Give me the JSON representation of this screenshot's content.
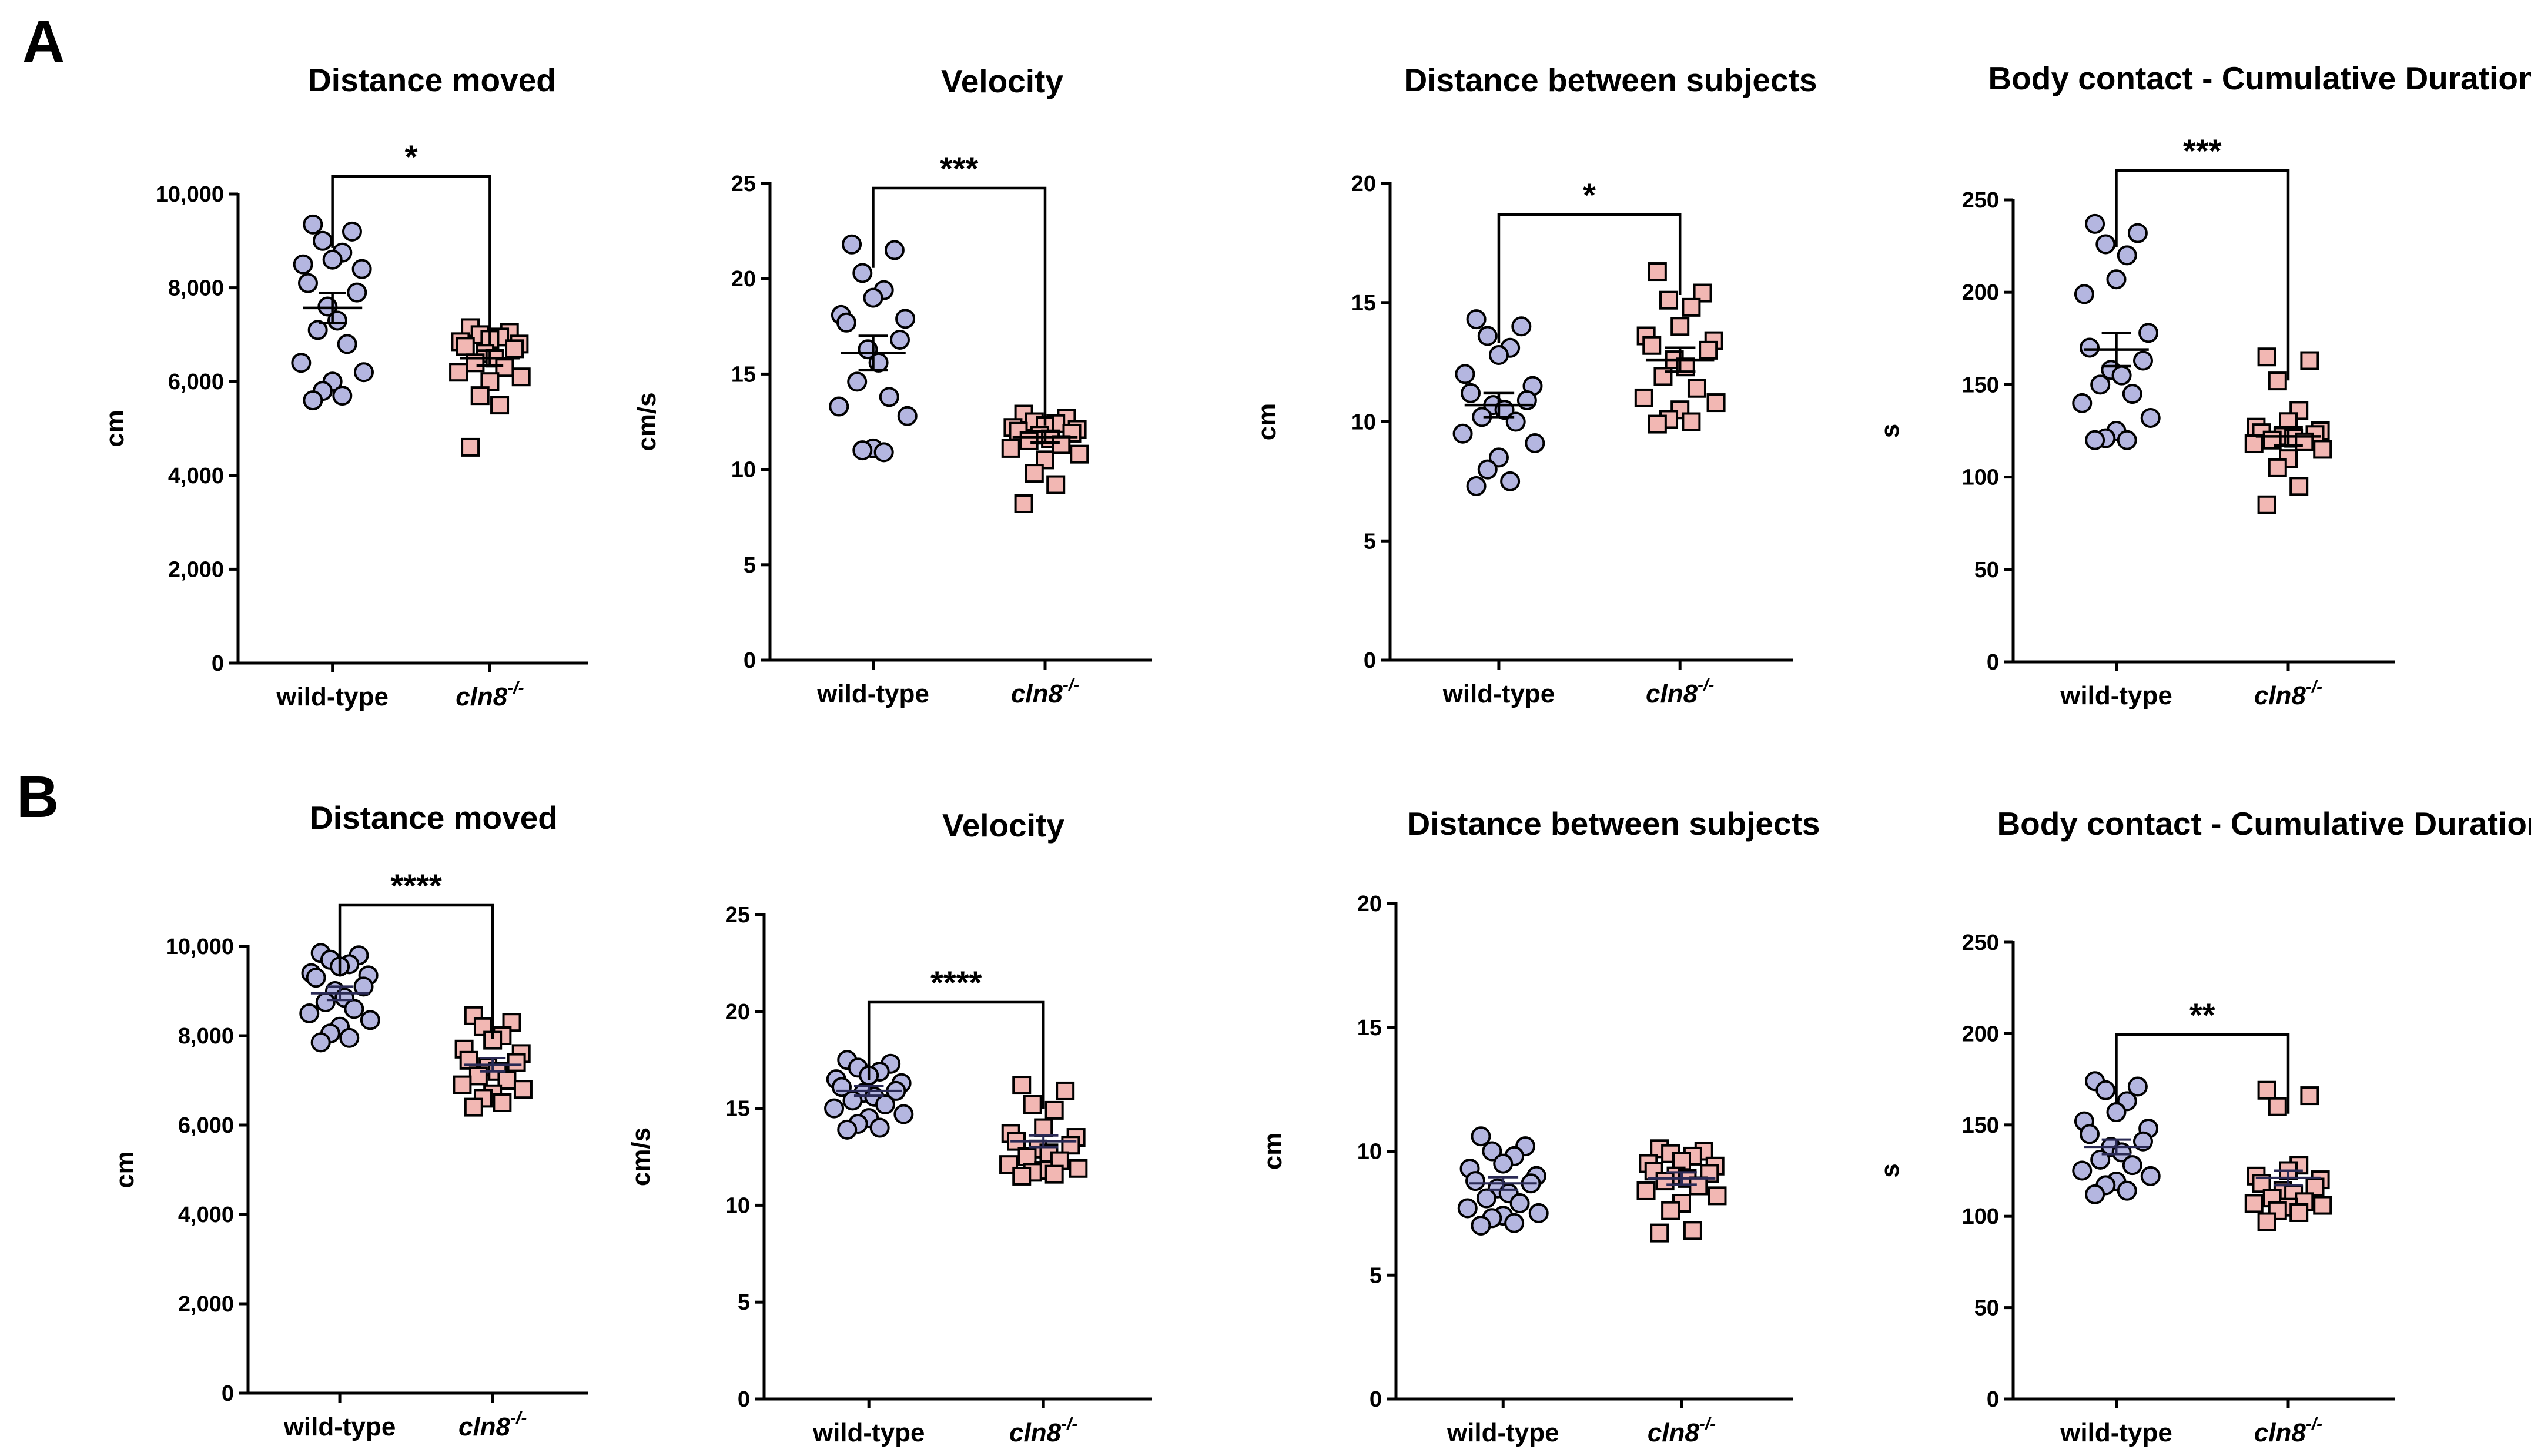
{
  "panels": [
    {
      "label": "A"
    },
    {
      "label": "B"
    }
  ],
  "chart_data": [
    {
      "panel": "A",
      "type": "scatter",
      "title": "Distance moved",
      "ylabel": "cm",
      "categories": [
        "wild-type",
        "cln8",
        "-/-"
      ],
      "ylim": [
        0,
        10000
      ],
      "yticks": [
        0,
        2000,
        4000,
        6000,
        8000,
        10000
      ],
      "ytick_labels": [
        "0",
        "2,000",
        "4,000",
        "6,000",
        "8,000",
        "10,000"
      ],
      "series": [
        {
          "name": "wild-type",
          "mean": 7570,
          "sem": 320,
          "values": [
            9350,
            9200,
            9000,
            8750,
            8600,
            8500,
            8400,
            8100,
            7900,
            7600,
            7300,
            7100,
            6800,
            6400,
            6200,
            6000,
            5800,
            5700,
            5600
          ]
        },
        {
          "name": "cln8-/-",
          "mean": 6500,
          "sem": 160,
          "values": [
            7150,
            7050,
            7000,
            6950,
            6900,
            6850,
            6800,
            6750,
            6700,
            6600,
            6500,
            6400,
            6300,
            6200,
            6100,
            6000,
            5700,
            5500,
            4600
          ]
        }
      ],
      "significance": "*"
    },
    {
      "panel": "A",
      "type": "scatter",
      "title": "Velocity",
      "ylabel": "cm/s",
      "categories": [
        "wild-type",
        "cln8",
        "-/-"
      ],
      "ylim": [
        0,
        25
      ],
      "yticks": [
        0,
        5,
        10,
        15,
        20,
        25
      ],
      "ytick_labels": [
        "0",
        "5",
        "10",
        "15",
        "20",
        "25"
      ],
      "series": [
        {
          "name": "wild-type",
          "mean": 16.1,
          "sem": 0.9,
          "values": [
            21.8,
            21.5,
            20.3,
            19.4,
            19.0,
            18.1,
            17.9,
            17.7,
            16.8,
            16.3,
            15.6,
            14.6,
            13.8,
            13.3,
            12.8,
            11.1,
            11.0,
            10.9
          ]
        },
        {
          "name": "cln8-/-",
          "mean": 11.7,
          "sem": 0.3,
          "values": [
            12.9,
            12.7,
            12.5,
            12.4,
            12.3,
            12.2,
            12.1,
            12.0,
            11.9,
            11.8,
            11.6,
            11.5,
            11.3,
            11.1,
            10.8,
            10.5,
            9.8,
            9.2,
            8.2
          ]
        }
      ],
      "significance": "***"
    },
    {
      "panel": "A",
      "type": "scatter",
      "title": "Distance between subjects",
      "ylabel": "cm",
      "categories": [
        "wild-type",
        "cln8",
        "-/-"
      ],
      "ylim": [
        0,
        20
      ],
      "yticks": [
        0,
        5,
        10,
        15,
        20
      ],
      "ytick_labels": [
        "0",
        "5",
        "10",
        "15",
        "20"
      ],
      "series": [
        {
          "name": "wild-type",
          "mean": 10.7,
          "sem": 0.5,
          "values": [
            14.3,
            14.0,
            13.6,
            13.1,
            12.8,
            12.0,
            11.5,
            11.2,
            10.9,
            10.7,
            10.5,
            10.2,
            10.0,
            9.5,
            9.1,
            8.5,
            8.0,
            7.5,
            7.3
          ]
        },
        {
          "name": "cln8-/-",
          "mean": 12.6,
          "sem": 0.5,
          "values": [
            16.3,
            15.4,
            15.1,
            14.8,
            14.0,
            13.6,
            13.4,
            13.2,
            13.0,
            12.6,
            12.3,
            11.9,
            11.4,
            11.0,
            10.8,
            10.5,
            10.1,
            10.0,
            9.9
          ]
        }
      ],
      "significance": "*"
    },
    {
      "panel": "A",
      "type": "scatter",
      "title": "Body contact - Cumulative Duration",
      "ylabel": "s",
      "categories": [
        "wild-type",
        "cln8",
        "-/-"
      ],
      "ylim": [
        0,
        250
      ],
      "yticks": [
        0,
        50,
        100,
        150,
        200,
        250
      ],
      "ytick_labels": [
        "0",
        "50",
        "100",
        "150",
        "200",
        "250"
      ],
      "series": [
        {
          "name": "wild-type",
          "mean": 169,
          "sem": 9,
          "values": [
            237,
            232,
            226,
            220,
            207,
            199,
            178,
            170,
            163,
            158,
            155,
            150,
            145,
            140,
            132,
            125,
            121,
            120,
            120
          ]
        },
        {
          "name": "cln8-/-",
          "mean": 122,
          "sem": 5,
          "values": [
            165,
            163,
            152,
            136,
            130,
            127,
            125,
            124,
            123,
            122,
            121,
            120,
            119,
            118,
            115,
            110,
            105,
            95,
            85
          ]
        }
      ],
      "significance": "***"
    },
    {
      "panel": "B",
      "type": "scatter",
      "title": "Distance moved",
      "ylabel": "cm",
      "categories": [
        "wild-type",
        "cln8",
        "-/-"
      ],
      "ylim": [
        0,
        10000
      ],
      "yticks": [
        0,
        2000,
        4000,
        6000,
        8000,
        10000
      ],
      "ytick_labels": [
        "0",
        "2,000",
        "4,000",
        "6,000",
        "8,000",
        "10,000"
      ],
      "series": [
        {
          "name": "wild-type",
          "mean": 8950,
          "sem": 150,
          "values": [
            9850,
            9800,
            9700,
            9600,
            9550,
            9400,
            9350,
            9300,
            9100,
            9000,
            8850,
            8750,
            8600,
            8500,
            8350,
            8200,
            8050,
            7950,
            7850
          ]
        },
        {
          "name": "cln8-/-",
          "mean": 7350,
          "sem": 150,
          "values": [
            8450,
            8300,
            8200,
            8000,
            7900,
            7700,
            7600,
            7450,
            7400,
            7300,
            7200,
            7100,
            7000,
            6900,
            6800,
            6700,
            6600,
            6500,
            6400
          ]
        }
      ],
      "significance": "****"
    },
    {
      "panel": "B",
      "type": "scatter",
      "title": "Velocity",
      "ylabel": "cm/s",
      "categories": [
        "wild-type",
        "cln8",
        "-/-"
      ],
      "ylim": [
        0,
        25
      ],
      "yticks": [
        0,
        5,
        10,
        15,
        20,
        25
      ],
      "ytick_labels": [
        "0",
        "5",
        "10",
        "15",
        "20",
        "25"
      ],
      "series": [
        {
          "name": "wild-type",
          "mean": 15.9,
          "sem": 0.25,
          "values": [
            17.5,
            17.3,
            17.1,
            16.9,
            16.7,
            16.5,
            16.3,
            16.1,
            15.9,
            15.8,
            15.6,
            15.4,
            15.2,
            15.0,
            14.7,
            14.5,
            14.2,
            14.0,
            13.9
          ]
        },
        {
          "name": "cln8-/-",
          "mean": 13.3,
          "sem": 0.3,
          "values": [
            16.2,
            15.9,
            15.2,
            14.9,
            14.0,
            13.7,
            13.5,
            13.3,
            13.1,
            12.9,
            12.7,
            12.5,
            12.3,
            12.1,
            11.9,
            11.8,
            11.7,
            11.6,
            11.5
          ]
        }
      ],
      "significance": "****"
    },
    {
      "panel": "B",
      "type": "scatter",
      "title": "Distance between subjects",
      "ylabel": "cm",
      "categories": [
        "wild-type",
        "cln8",
        "-/-"
      ],
      "ylim": [
        0,
        20
      ],
      "yticks": [
        0,
        5,
        10,
        15,
        20
      ],
      "ytick_labels": [
        "0",
        "5",
        "10",
        "15",
        "20"
      ],
      "series": [
        {
          "name": "wild-type",
          "mean": 8.7,
          "sem": 0.25,
          "values": [
            10.6,
            10.2,
            10.0,
            9.8,
            9.5,
            9.3,
            9.0,
            8.8,
            8.7,
            8.5,
            8.3,
            8.1,
            7.9,
            7.7,
            7.5,
            7.4,
            7.3,
            7.1,
            7.0
          ]
        },
        {
          "name": "cln8-/-",
          "mean": 8.9,
          "sem": 0.25,
          "values": [
            10.1,
            10.0,
            9.9,
            9.8,
            9.6,
            9.5,
            9.4,
            9.2,
            9.1,
            9.0,
            8.9,
            8.8,
            8.6,
            8.4,
            8.2,
            7.9,
            7.6,
            6.8,
            6.7
          ]
        }
      ],
      "significance": ""
    },
    {
      "panel": "B",
      "type": "scatter",
      "title": "Body contact - Cumulative Duration",
      "ylabel": "s",
      "categories": [
        "wild-type",
        "cln8",
        "-/-"
      ],
      "ylim": [
        0,
        250
      ],
      "yticks": [
        0,
        50,
        100,
        150,
        200,
        250
      ],
      "ytick_labels": [
        "0",
        "50",
        "100",
        "150",
        "200",
        "250"
      ],
      "series": [
        {
          "name": "wild-type",
          "mean": 138,
          "sem": 4,
          "values": [
            174,
            171,
            169,
            163,
            157,
            152,
            148,
            145,
            141,
            138,
            135,
            131,
            128,
            125,
            122,
            119,
            117,
            114,
            112
          ]
        },
        {
          "name": "cln8-/-",
          "mean": 121,
          "sem": 4,
          "values": [
            169,
            166,
            160,
            128,
            125,
            122,
            120,
            118,
            116,
            114,
            112,
            110,
            108,
            107,
            106,
            105,
            103,
            102,
            97
          ]
        }
      ],
      "significance": "**"
    }
  ]
}
